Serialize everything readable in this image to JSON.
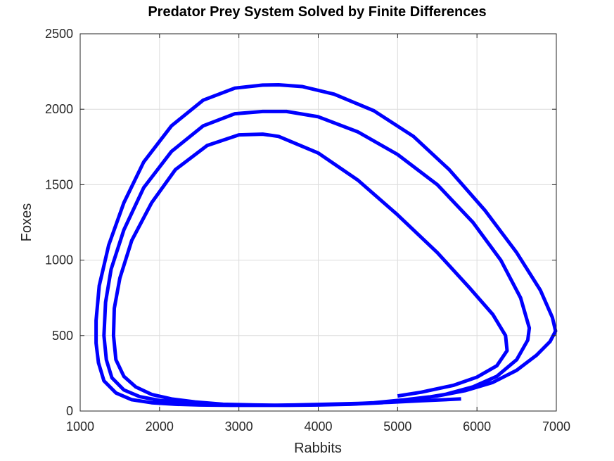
{
  "chart_data": {
    "type": "line",
    "title": "Predator Prey System Solved by Finite Differences",
    "xlabel": "Rabbits",
    "ylabel": "Foxes",
    "xlim": [
      1000,
      7000
    ],
    "ylim": [
      0,
      2500
    ],
    "xticks": [
      1000,
      2000,
      3000,
      4000,
      5000,
      6000,
      7000
    ],
    "yticks": [
      0,
      500,
      1000,
      1500,
      2000,
      2500
    ],
    "xtick_labels": [
      "1000",
      "2000",
      "3000",
      "4000",
      "5000",
      "6000",
      "7000"
    ],
    "ytick_labels": [
      "0",
      "500",
      "1000",
      "1500",
      "2000",
      "2500"
    ],
    "grid": true,
    "line_color": "#0000ff",
    "series": [
      {
        "x": [
          5000,
          5300,
          5700,
          6000,
          6250,
          6380,
          6360,
          6200,
          5900,
          5500,
          5000,
          4500,
          4000,
          3500,
          3300,
          3000,
          2600,
          2200,
          1900,
          1650,
          1500,
          1430,
          1420,
          1450,
          1550,
          1700,
          1900,
          2150,
          2450,
          2800,
          3200,
          3600,
          4000,
          4400,
          4800,
          5200,
          5600,
          5950,
          6250,
          6500,
          6640,
          6660,
          6550,
          6300,
          5950,
          5500,
          5000,
          4500,
          4000,
          3600,
          3300,
          2950,
          2550,
          2150,
          1800,
          1550,
          1390,
          1320,
          1300,
          1330,
          1400,
          1550,
          1750,
          2000,
          2300,
          2700,
          3100,
          3500,
          3900,
          4300,
          4700,
          5100,
          5500,
          5850,
          6200,
          6500,
          6750,
          6920,
          6990,
          6950,
          6800,
          6500,
          6100,
          5650,
          5200,
          4700,
          4200,
          3800,
          3500,
          3300,
          2950,
          2550,
          2150,
          1800,
          1550,
          1360,
          1240,
          1200,
          1200,
          1230,
          1300,
          1450,
          1650,
          1900,
          2200,
          2500,
          2900,
          3300,
          3700,
          4100,
          4500,
          4900,
          5300,
          5800
        ],
        "y": [
          100,
          125,
          170,
          225,
          300,
          400,
          500,
          640,
          820,
          1050,
          1300,
          1530,
          1710,
          1820,
          1835,
          1830,
          1760,
          1600,
          1380,
          1130,
          880,
          680,
          500,
          340,
          230,
          160,
          110,
          80,
          60,
          45,
          40,
          38,
          40,
          45,
          55,
          75,
          110,
          160,
          230,
          340,
          470,
          550,
          750,
          1000,
          1250,
          1500,
          1700,
          1850,
          1950,
          1985,
          1985,
          1970,
          1890,
          1720,
          1480,
          1200,
          940,
          720,
          500,
          340,
          220,
          140,
          95,
          70,
          55,
          45,
          40,
          38,
          40,
          45,
          55,
          75,
          100,
          135,
          190,
          270,
          370,
          460,
          530,
          620,
          800,
          1050,
          1330,
          1600,
          1820,
          1990,
          2100,
          2150,
          2162,
          2160,
          2140,
          2060,
          1890,
          1650,
          1380,
          1100,
          830,
          600,
          450,
          320,
          200,
          120,
          75,
          55,
          45,
          40,
          38,
          38,
          40,
          45,
          50,
          58,
          68,
          80
        ]
      }
    ]
  }
}
